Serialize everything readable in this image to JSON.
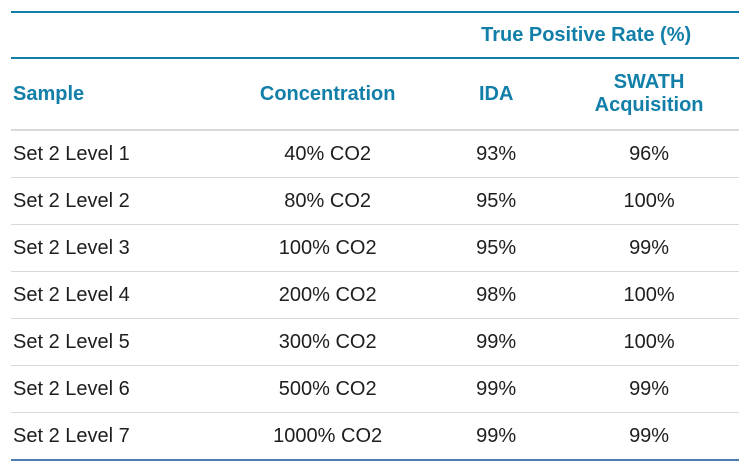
{
  "colors": {
    "accent": "#127FA9",
    "row_divider": "#d9d9d9",
    "bottom_rule": "#4f7db3",
    "body_text": "#1e1e1e",
    "background": "#ffffff"
  },
  "table": {
    "spanner_label": "True Positive Rate (%)",
    "columns": [
      "Sample",
      "Concentration",
      "IDA",
      "SWATH Acquisition"
    ],
    "rows": [
      [
        "Set 2 Level 1",
        "40% CO2",
        "93%",
        "96%"
      ],
      [
        "Set 2 Level 2",
        "80% CO2",
        "95%",
        "100%"
      ],
      [
        "Set 2 Level 3",
        "100% CO2",
        "95%",
        "99%"
      ],
      [
        "Set 2 Level 4",
        "200% CO2",
        "98%",
        "100%"
      ],
      [
        "Set 2 Level 5",
        "300% CO2",
        "99%",
        "100%"
      ],
      [
        "Set 2 Level 6",
        "500% CO2",
        "99%",
        "99%"
      ],
      [
        "Set 2 Level 7",
        "1000% CO2",
        "99%",
        "99%"
      ]
    ]
  },
  "chart_data": {
    "type": "table",
    "title": "True Positive Rate (%)",
    "categories": [
      "Set 2 Level 1",
      "Set 2 Level 2",
      "Set 2 Level 3",
      "Set 2 Level 4",
      "Set 2 Level 5",
      "Set 2 Level 6",
      "Set 2 Level 7"
    ],
    "concentrations": [
      "40% CO2",
      "80% CO2",
      "100% CO2",
      "200% CO2",
      "300% CO2",
      "500% CO2",
      "1000% CO2"
    ],
    "series": [
      {
        "name": "IDA",
        "values": [
          93,
          95,
          95,
          98,
          99,
          99,
          99
        ]
      },
      {
        "name": "SWATH Acquisition",
        "values": [
          96,
          100,
          99,
          100,
          100,
          99,
          99
        ]
      }
    ]
  }
}
